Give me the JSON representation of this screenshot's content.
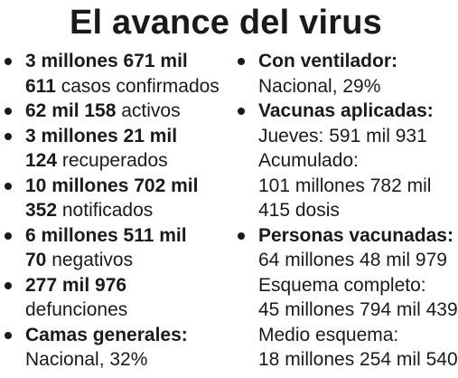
{
  "title": "El avance del virus",
  "left_items": [
    {
      "line1": "3 millones 671 mil",
      "line2_bold": "611",
      "line2_rest": " casos confirmados"
    },
    {
      "line1_bold": "62 mil 158",
      "line1_rest": " activos"
    },
    {
      "line1": "3 millones 21 mil",
      "line2_bold": "124",
      "line2_rest": " recuperados"
    },
    {
      "line1": "10 millones 702 mil",
      "line2_bold": "352",
      "line2_rest": " notificados"
    },
    {
      "line1": "6 millones 511 mil",
      "line2_bold": "70",
      "line2_rest": " negativos"
    },
    {
      "line1": "277 mil 976",
      "line2": "defunciones"
    },
    {
      "line1": "Camas generales:",
      "line2": "Nacional, 32%"
    }
  ],
  "right_items": [
    {
      "heading": "Con ventilador:",
      "lines": [
        "Nacional, 29%"
      ]
    },
    {
      "heading": "Vacunas aplicadas:",
      "lines": [
        "Jueves: 591 mil 931",
        "Acumulado:",
        "101 millones 782 mil",
        "415 dosis"
      ]
    },
    {
      "heading": "Personas vacunadas:",
      "lines": [
        "64 millones 48 mil 979",
        "Esquema completo:",
        "45 millones 794 mil 439",
        "Medio esquema:",
        "18 millones 254 mil 540"
      ]
    }
  ]
}
